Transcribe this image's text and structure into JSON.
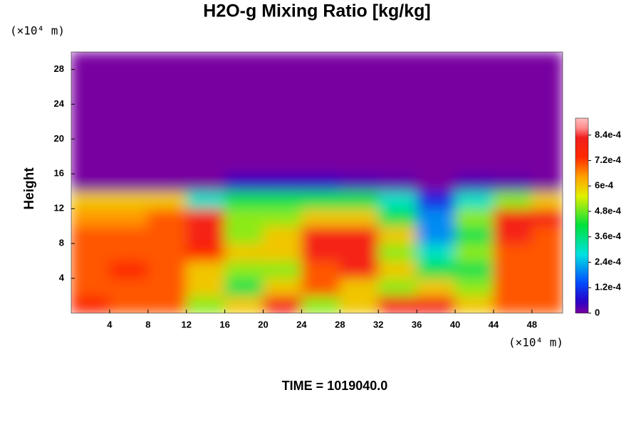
{
  "chart_data": {
    "type": "heatmap",
    "title": "H2O-g Mixing Ratio [kg/kg]",
    "ylabel": "Height",
    "yunit": "(×10⁴ m)",
    "xunit": "(×10⁴ m)",
    "footer": "TIME = 1019040.0",
    "xlim": [
      0,
      51.2
    ],
    "ylim": [
      0,
      30
    ],
    "xticks": [
      4,
      8,
      12,
      16,
      20,
      24,
      28,
      32,
      36,
      40,
      44,
      48
    ],
    "yticks": [
      4,
      8,
      12,
      16,
      20,
      24,
      28
    ],
    "x": [
      0,
      4,
      8,
      12,
      16,
      20,
      24,
      28,
      32,
      36,
      40,
      44,
      48,
      51.2
    ],
    "y": [
      0,
      2,
      4,
      6,
      8,
      10,
      12,
      14,
      16,
      18,
      20,
      22,
      24,
      26,
      28,
      30
    ],
    "z": [
      [
        0.00075,
        0.0007,
        0.0007,
        0.0005,
        0.0006,
        0.0008,
        0.0005,
        0.0006,
        0.0008,
        0.0008,
        0.0006,
        0.0007,
        0.0007
      ],
      [
        0.0007,
        0.0007,
        0.0007,
        0.0006,
        0.0004,
        0.0006,
        0.0007,
        0.0006,
        0.0005,
        0.0006,
        0.0005,
        0.0007,
        0.0007
      ],
      [
        0.0007,
        0.00075,
        0.0007,
        0.0006,
        0.0005,
        0.0005,
        0.0007,
        0.0008,
        0.0006,
        0.0004,
        0.0004,
        0.0007,
        0.0007
      ],
      [
        0.0007,
        0.0007,
        0.0007,
        0.00075,
        0.0006,
        0.0006,
        0.0008,
        0.0008,
        0.0005,
        0.0003,
        0.0005,
        0.0007,
        0.0007
      ],
      [
        0.0007,
        0.0007,
        0.0007,
        0.0008,
        0.0005,
        0.0006,
        0.0008,
        0.0008,
        0.0006,
        0.0002,
        0.0004,
        0.0008,
        0.0007
      ],
      [
        0.00065,
        0.00065,
        0.0007,
        0.0008,
        0.0005,
        0.0005,
        0.0006,
        0.0006,
        0.0004,
        0.0002,
        0.0005,
        0.0008,
        0.0008
      ],
      [
        0.0006,
        0.0006,
        0.0006,
        0.0003,
        0.0004,
        0.0004,
        0.0004,
        0.0004,
        0.0003,
        0.0001,
        0.0003,
        0.0005,
        0.0006
      ],
      [
        0,
        0,
        0,
        0,
        5e-05,
        5e-05,
        5e-05,
        3e-05,
        2e-05,
        0,
        3e-05,
        2e-05,
        0
      ],
      [
        0,
        0,
        0,
        0,
        0,
        0,
        0,
        0,
        0,
        0,
        0,
        0,
        0
      ],
      [
        0,
        0,
        0,
        0,
        0,
        0,
        0,
        0,
        0,
        0,
        0,
        0,
        0
      ],
      [
        0,
        0,
        0,
        0,
        0,
        0,
        0,
        0,
        0,
        0,
        0,
        0,
        0
      ],
      [
        0,
        0,
        0,
        0,
        0,
        0,
        0,
        0,
        0,
        0,
        0,
        0,
        0
      ],
      [
        0,
        0,
        0,
        0,
        0,
        0,
        0,
        0,
        0,
        0,
        0,
        0,
        0
      ],
      [
        0,
        0,
        0,
        0,
        0,
        0,
        0,
        0,
        0,
        0,
        0,
        0,
        0
      ],
      [
        0,
        0,
        0,
        0,
        0,
        0,
        0,
        0,
        0,
        0,
        0,
        0,
        0
      ]
    ],
    "clim": [
      0,
      0.00092
    ],
    "cticks": [
      0,
      {
        "value": 0.00012,
        "label": "1.2e-4"
      },
      {
        "value": 0.00024,
        "label": "2.4e-4"
      },
      {
        "value": 0.00036,
        "label": "3.6e-4"
      },
      {
        "value": 0.00048,
        "label": "4.8e-4"
      },
      {
        "value": 0.0006,
        "label": "6e-4"
      },
      {
        "value": 0.00072,
        "label": "7.2e-4"
      },
      {
        "value": 0.00084,
        "label": "8.4e-4"
      }
    ]
  }
}
